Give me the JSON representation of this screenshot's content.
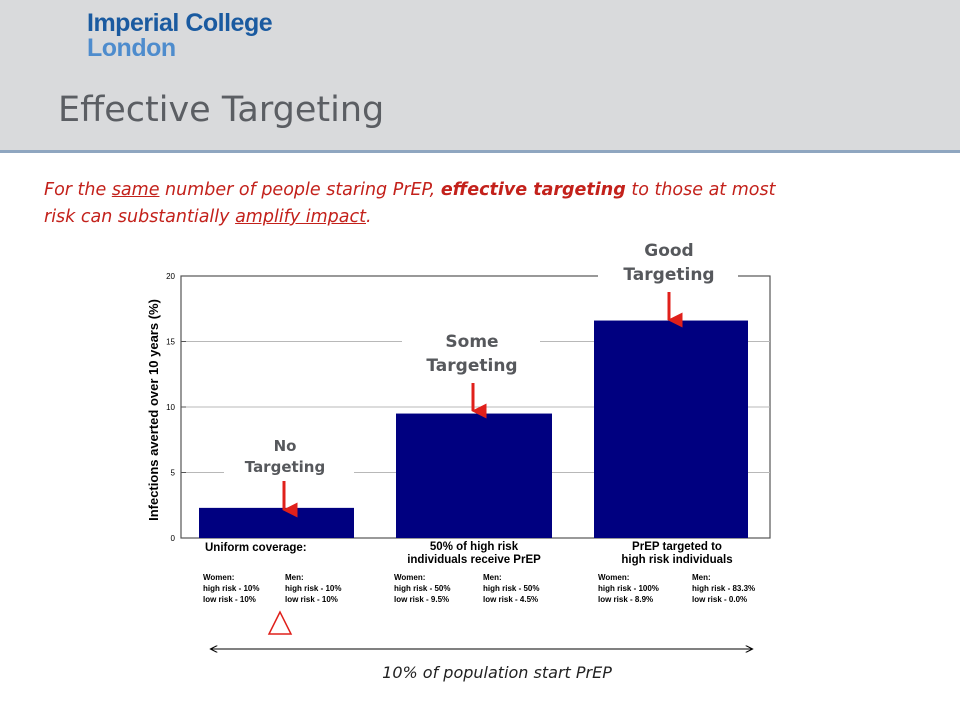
{
  "header": {
    "logo_line1": "Imperial College",
    "logo_line2": "London",
    "title": "Effective Targeting"
  },
  "subtitle": {
    "p1": "For the ",
    "same": "same",
    "p2": " number of people staring PrEP, ",
    "bold": "effective targeting",
    "p3": " to those at most risk can substantially ",
    "amplify": "amplify impact",
    "p4": "."
  },
  "chart_data": {
    "type": "bar",
    "ylabel": "Infections averted over 10 years (%)",
    "ylim": [
      0,
      20
    ],
    "yticks": [
      "0",
      "5",
      "10",
      "15",
      "20"
    ],
    "grid": true,
    "bar_color": "#000080",
    "categories": [
      "Uniform coverage:",
      "50% of high risk individuals receive PrEP",
      "PrEP targeted to high risk individuals"
    ],
    "category_labels": [
      [
        "Uniform coverage:"
      ],
      [
        "50% of high risk",
        "individuals receive PrEP"
      ],
      [
        "PrEP targeted to",
        "high risk individuals"
      ]
    ],
    "values": [
      2.3,
      9.5,
      16.6
    ],
    "targeting_labels": [
      [
        "No",
        "Targeting"
      ],
      [
        "Some",
        "Targeting"
      ],
      [
        "Good",
        "Targeting"
      ]
    ],
    "coverage": [
      [
        [
          "Women:",
          "high risk - 10%",
          "low risk   - 10%"
        ],
        [
          "Men:",
          "high risk - 10%",
          "low risk   - 10%"
        ]
      ],
      [
        [
          "Women:",
          "high risk - 50%",
          "low risk   - 9.5%"
        ],
        [
          "Men:",
          "high risk - 50%",
          "low risk   - 4.5%"
        ]
      ],
      [
        [
          "Women:",
          "high risk - 100%",
          "low risk   - 8.9%"
        ],
        [
          "Men:",
          "high risk - 83.3%",
          "low risk   -   0.0%"
        ]
      ]
    ],
    "population_note": "10% of population start PrEP"
  },
  "colors": {
    "header_bg": "#d9dadc",
    "title": "#5b5e63",
    "subtitle": "#c3211b",
    "arrow": "#e0201b",
    "bar": "#000080"
  }
}
